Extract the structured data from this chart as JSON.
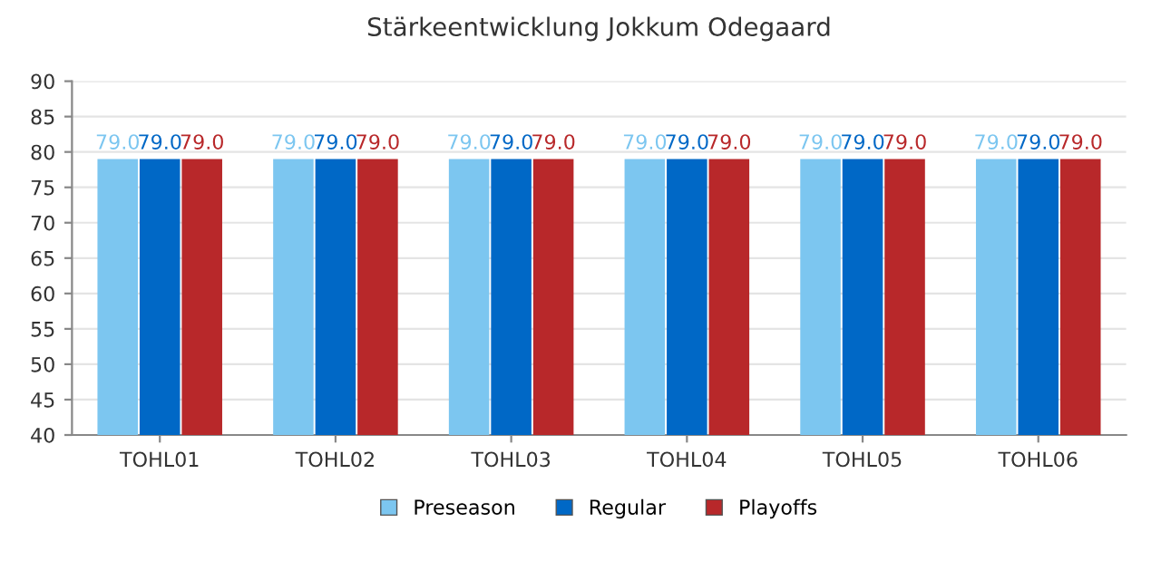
{
  "chart_data": {
    "type": "bar",
    "title": "Stärkeentwicklung Jokkum Odegaard",
    "categories": [
      "TOHL01",
      "TOHL02",
      "TOHL03",
      "TOHL04",
      "TOHL05",
      "TOHL06"
    ],
    "series": [
      {
        "name": "Preseason",
        "color": "#7cc6f0",
        "values": [
          79,
          79,
          79,
          79,
          79,
          79
        ],
        "value_labels": [
          "79.0",
          "79.0",
          "79.0",
          "79.0",
          "79.0",
          "79.0"
        ]
      },
      {
        "name": "Regular",
        "color": "#0068c6",
        "values": [
          79,
          79,
          79,
          79,
          79,
          79
        ],
        "value_labels": [
          "79.0",
          "79.0",
          "79.0",
          "79.0",
          "79.0",
          "79.0"
        ]
      },
      {
        "name": "Playoffs",
        "color": "#b8282a",
        "values": [
          79,
          79,
          79,
          79,
          79,
          79
        ],
        "value_labels": [
          "79.0",
          "79.0",
          "79.0",
          "79.0",
          "79.0",
          "79.0"
        ]
      }
    ],
    "ylim": [
      40,
      90
    ],
    "yticks": [
      40,
      45,
      50,
      55,
      60,
      65,
      70,
      75,
      80,
      85,
      90
    ],
    "grid": "y",
    "legend": "bottom"
  }
}
